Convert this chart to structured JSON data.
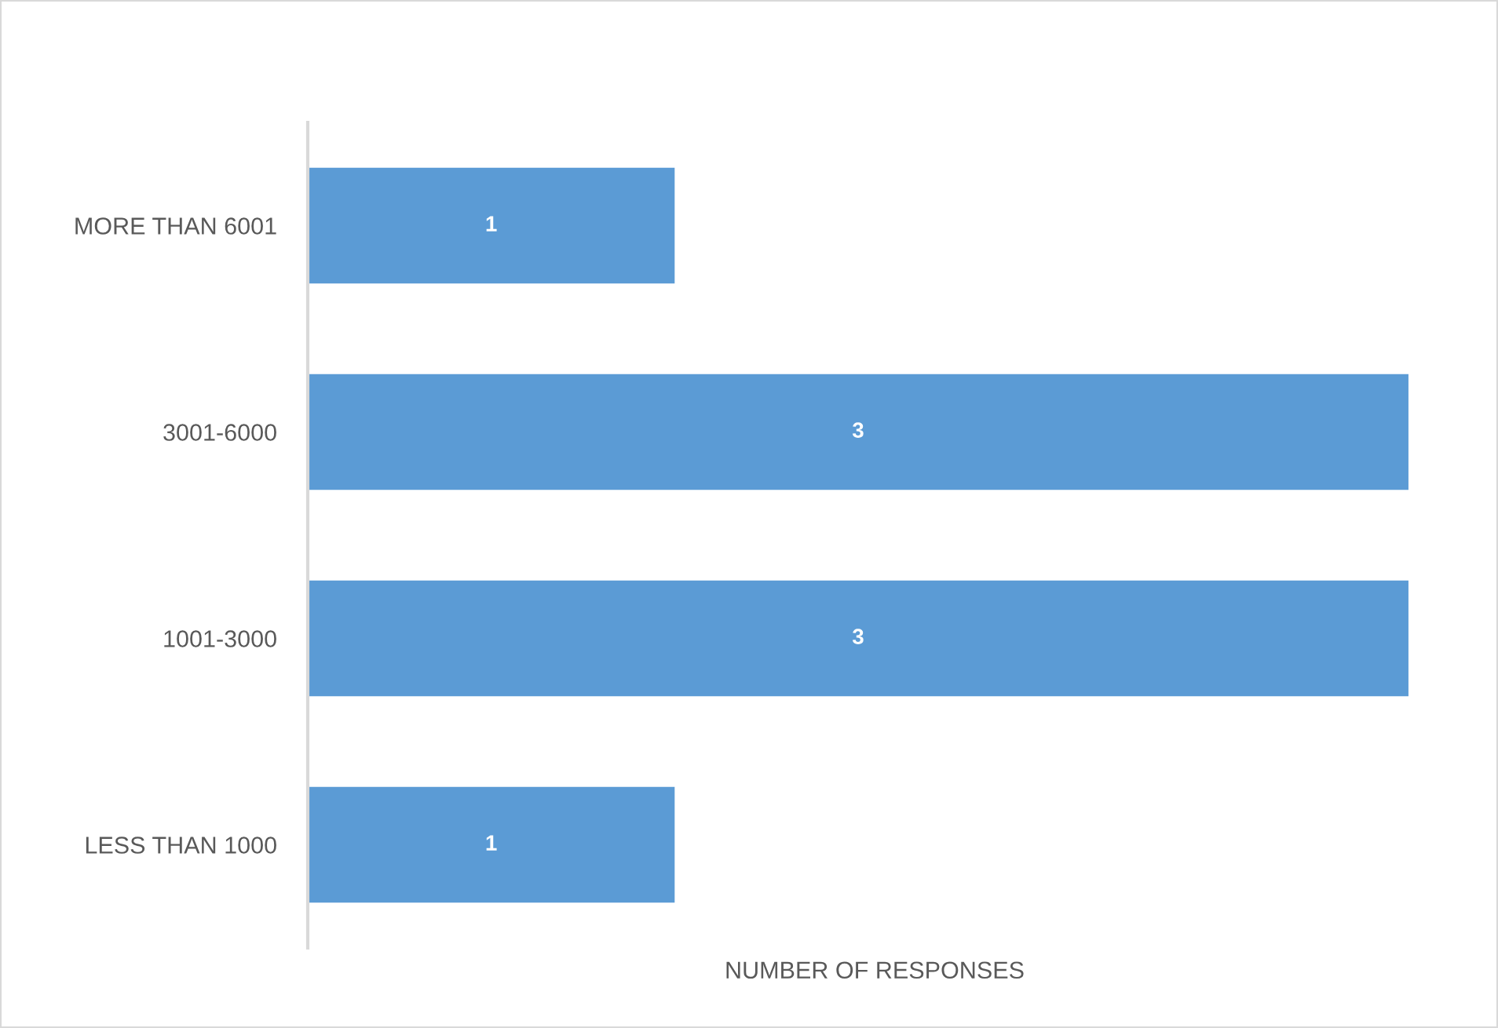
{
  "chart_data": {
    "type": "bar",
    "orientation": "horizontal",
    "xlabel": "NUMBER OF RESPONSES",
    "categories": [
      "MORE THAN 6001",
      "3001-6000",
      "1001-3000",
      "LESS THAN 1000"
    ],
    "values": [
      1,
      3,
      3,
      1
    ],
    "color": "#5b9bd5",
    "data_labels": true,
    "tick_labels": "y",
    "grid": false,
    "legend": false
  }
}
